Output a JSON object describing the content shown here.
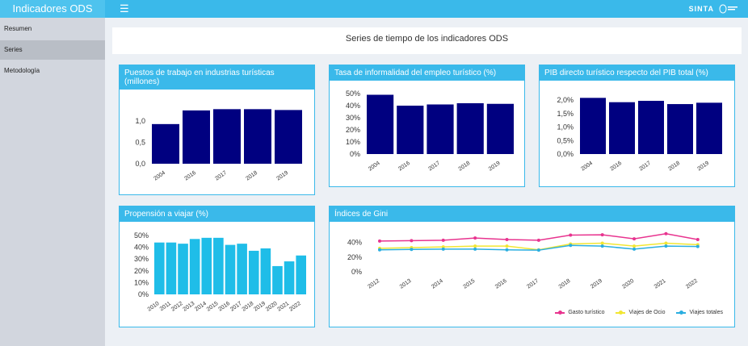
{
  "app": {
    "title": "Indicadores ODS",
    "menu_icon": "hamburger-icon",
    "brand_right": "SINTA"
  },
  "sidebar": {
    "items": [
      {
        "label": "Resumen"
      },
      {
        "label": "Series"
      },
      {
        "label": "Metodología"
      }
    ],
    "active_index": 1
  },
  "main": {
    "title": "Series de tiempo de los indicadores ODS"
  },
  "colors": {
    "header": "#3ab9ea",
    "bar_navy": "#000080",
    "bar_cyan": "#1fbde8"
  },
  "panels": {
    "empleo": {
      "title": "Puestos de trabajo en industrias turísticas (millones)"
    },
    "informalidad": {
      "title": "Tasa de informalidad del empleo turístico (%)"
    },
    "pib": {
      "title": "PIB directo turístico respecto del PIB total (%)"
    },
    "propension": {
      "title": "Propensión a viajar (%)"
    },
    "gini": {
      "title": "Índices de Gini"
    }
  },
  "chart_data": [
    {
      "id": "empleo",
      "type": "bar",
      "categories": [
        "2004",
        "2016",
        "2017",
        "2018",
        "2019"
      ],
      "values": [
        0.93,
        1.25,
        1.28,
        1.28,
        1.26
      ],
      "ylim": [
        0,
        1.4
      ],
      "yticks": [
        0,
        0.5,
        1.0
      ],
      "ytick_labels": [
        "0,0",
        "0,5",
        "1,0"
      ],
      "color": "#000080"
    },
    {
      "id": "informalidad",
      "type": "bar",
      "categories": [
        "2004",
        "2016",
        "2017",
        "2018",
        "2019"
      ],
      "values": [
        49,
        40,
        41,
        42,
        41.5
      ],
      "ylim": [
        0,
        52
      ],
      "yticks": [
        0,
        10,
        20,
        30,
        40,
        50
      ],
      "ytick_labels": [
        "0%",
        "10%",
        "20%",
        "30%",
        "40%",
        "50%"
      ],
      "color": "#000080"
    },
    {
      "id": "pib",
      "type": "bar",
      "categories": [
        "2004",
        "2016",
        "2017",
        "2018",
        "2019"
      ],
      "values": [
        2.08,
        1.92,
        1.97,
        1.85,
        1.9
      ],
      "ylim": [
        0,
        2.15
      ],
      "yticks": [
        0,
        0.5,
        1.0,
        1.5,
        2.0
      ],
      "ytick_labels": [
        "0,0%",
        "0,5%",
        "1,0%",
        "1,5%",
        "2,0%"
      ],
      "color": "#000080"
    },
    {
      "id": "propension",
      "type": "bar",
      "categories": [
        "2010",
        "2011",
        "2012",
        "2013",
        "2014",
        "2015",
        "2016",
        "2017",
        "2018",
        "2019",
        "2020",
        "2021",
        "2022"
      ],
      "values": [
        44,
        44,
        43,
        47,
        48,
        48,
        42,
        43,
        37,
        39,
        24,
        28,
        33
      ],
      "ylim": [
        0,
        52
      ],
      "yticks": [
        0,
        10,
        20,
        30,
        40,
        50
      ],
      "ytick_labels": [
        "0%",
        "10%",
        "20%",
        "30%",
        "40%",
        "50%"
      ],
      "color": "#1fbde8"
    },
    {
      "id": "gini",
      "type": "line",
      "x": [
        "2012",
        "2013",
        "2014",
        "2015",
        "2016",
        "2017",
        "2018",
        "2019",
        "2020",
        "2021",
        "2022"
      ],
      "ylim": [
        0,
        55
      ],
      "yticks": [
        0,
        20,
        40
      ],
      "ytick_labels": [
        "0%",
        "20%",
        "40%"
      ],
      "series": [
        {
          "name": "Gasto turístico",
          "color": "#e8348f",
          "values": [
            42,
            42.5,
            43,
            46,
            44,
            43,
            50,
            50.5,
            45,
            52,
            44
          ]
        },
        {
          "name": "Viajes de Ocio",
          "color": "#f2e632",
          "values": [
            32,
            33,
            34,
            35,
            35,
            30,
            38,
            39,
            35,
            39,
            37
          ]
        },
        {
          "name": "Viajes totales",
          "color": "#2aaee0",
          "values": [
            30,
            30.5,
            31,
            31,
            30,
            29.5,
            36,
            35,
            31,
            35,
            34.5
          ]
        }
      ]
    }
  ]
}
